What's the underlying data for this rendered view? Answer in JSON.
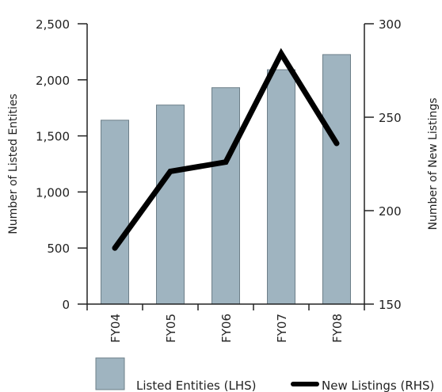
{
  "chart_data": {
    "type": "bar+line",
    "categories": [
      "FY04",
      "FY05",
      "FY06",
      "FY07",
      "FY08"
    ],
    "series": [
      {
        "name": "Listed Entities (LHS)",
        "type": "bar",
        "axis": "left",
        "color": "#9fb4c0",
        "values": [
          1640,
          1775,
          1930,
          2090,
          2225
        ]
      },
      {
        "name": "New Listings (RHS)",
        "type": "line",
        "axis": "right",
        "color": "#000000",
        "values": [
          180,
          221,
          226,
          284,
          236
        ]
      }
    ],
    "left_axis": {
      "label": "Number of Listed Entities",
      "range": [
        0,
        2500
      ],
      "ticks": [
        0,
        500,
        1000,
        1500,
        2000,
        2500
      ],
      "tick_labels": [
        "0",
        "500",
        "1,000",
        "1,500",
        "2,000",
        "2,500"
      ]
    },
    "right_axis": {
      "label": "Number of New Listings",
      "range": [
        150,
        300
      ],
      "ticks": [
        150,
        200,
        250,
        300
      ],
      "tick_labels": [
        "150",
        "200",
        "250",
        "300"
      ]
    },
    "xlabel": "",
    "grid": false,
    "legend_position": "bottom"
  }
}
